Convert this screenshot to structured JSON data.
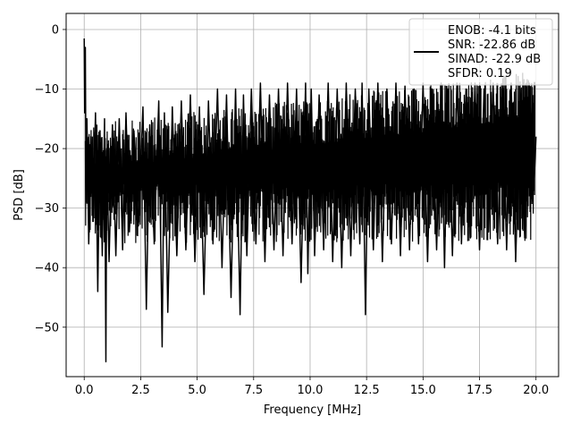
{
  "chart_data": {
    "type": "line",
    "title": "",
    "xlabel": "Frequency [MHz]",
    "ylabel": "PSD [dB]",
    "xlim": [
      -0.8,
      21.0
    ],
    "ylim": [
      -58.3,
      2.7
    ],
    "xticks": [
      0.0,
      2.5,
      5.0,
      7.5,
      10.0,
      12.5,
      15.0,
      17.5,
      20.0
    ],
    "xtick_labels": [
      "0.0",
      "2.5",
      "5.0",
      "7.5",
      "10.0",
      "12.5",
      "15.0",
      "17.5",
      "20.0"
    ],
    "yticks": [
      0,
      -10,
      -20,
      -30,
      -40,
      -50
    ],
    "ytick_labels": [
      "0",
      "−10",
      "−20",
      "−30",
      "−40",
      "−50"
    ],
    "grid": true,
    "legend_position": "top-right",
    "legend_entries": [
      "ENOB: -4.1 bits",
      "SNR: -22.86 dB",
      "SINAD: -22.9 dB",
      "SFDR: 0.19"
    ],
    "line_color": "#000000",
    "series": [
      {
        "x": [
          0.0,
          0.02,
          0.05,
          0.08,
          0.12,
          0.2,
          0.3,
          0.4,
          0.5,
          0.6,
          0.7,
          0.8,
          0.9,
          0.96,
          1.0,
          1.1,
          1.25,
          1.4,
          1.55,
          1.7,
          1.85,
          2.0,
          2.2,
          2.4,
          2.6,
          2.75,
          2.9,
          3.1,
          3.3,
          3.45,
          3.55,
          3.7,
          3.9,
          4.1,
          4.3,
          4.5,
          4.7,
          4.9,
          5.1,
          5.3,
          5.5,
          5.7,
          5.9,
          6.1,
          6.3,
          6.5,
          6.7,
          6.9,
          7.05,
          7.2,
          7.4,
          7.6,
          7.8,
          8.0,
          8.2,
          8.4,
          8.6,
          8.8,
          9.0,
          9.2,
          9.4,
          9.6,
          9.8,
          9.9,
          10.05,
          10.2,
          10.4,
          10.6,
          10.8,
          11.0,
          11.2,
          11.4,
          11.6,
          11.8,
          12.0,
          12.2,
          12.3,
          12.45,
          12.6,
          12.8,
          13.0,
          13.2,
          13.4,
          13.6,
          13.8,
          14.0,
          14.2,
          14.4,
          14.6,
          14.8,
          15.0,
          15.2,
          15.4,
          15.6,
          15.8,
          15.95,
          16.1,
          16.3,
          16.5,
          16.7,
          16.9,
          17.1,
          17.3,
          17.5,
          17.7,
          17.9,
          18.1,
          18.3,
          18.5,
          18.7,
          18.9,
          19.1,
          19.3,
          19.5,
          19.7,
          19.9,
          20.0
        ],
        "y": [
          -1.5,
          -14.0,
          -3.0,
          -29.0,
          -15.0,
          -36.0,
          -18.0,
          -30.0,
          -14.0,
          -44.0,
          -17.0,
          -38.0,
          -15.0,
          -55.8,
          -20.0,
          -39.0,
          -16.0,
          -38.0,
          -15.0,
          -37.0,
          -14.0,
          -34.0,
          -17.0,
          -33.0,
          -13.0,
          -47.0,
          -16.0,
          -36.0,
          -12.0,
          -53.3,
          -14.0,
          -47.5,
          -13.0,
          -38.0,
          -12.0,
          -37.0,
          -11.0,
          -39.0,
          -13.0,
          -44.5,
          -12.0,
          -36.0,
          -10.0,
          -40.0,
          -11.0,
          -45.0,
          -10.0,
          -47.9,
          -11.0,
          -38.0,
          -10.0,
          -36.0,
          -9.0,
          -39.0,
          -11.0,
          -37.0,
          -10.0,
          -38.0,
          -9.0,
          -36.0,
          -10.0,
          -42.5,
          -9.0,
          -41.0,
          -10.0,
          -38.0,
          -11.0,
          -37.0,
          -9.0,
          -39.0,
          -10.0,
          -40.0,
          -9.0,
          -38.0,
          -10.0,
          -36.0,
          -9.0,
          -47.9,
          -10.0,
          -37.0,
          -9.0,
          -39.0,
          -10.0,
          -36.0,
          -9.0,
          -38.0,
          -9.5,
          -37.0,
          -10.0,
          -36.0,
          -9.0,
          -39.0,
          -10.0,
          -37.0,
          -9.0,
          -40.0,
          -10.0,
          -38.0,
          -9.0,
          -36.0,
          -10.0,
          -35.0,
          -9.0,
          -37.0,
          -10.0,
          -34.0,
          -9.0,
          -36.0,
          -10.0,
          -37.0,
          -9.0,
          -39.0,
          -10.0,
          -35.0,
          -9.0,
          -27.0,
          -18.0
        ]
      }
    ]
  }
}
